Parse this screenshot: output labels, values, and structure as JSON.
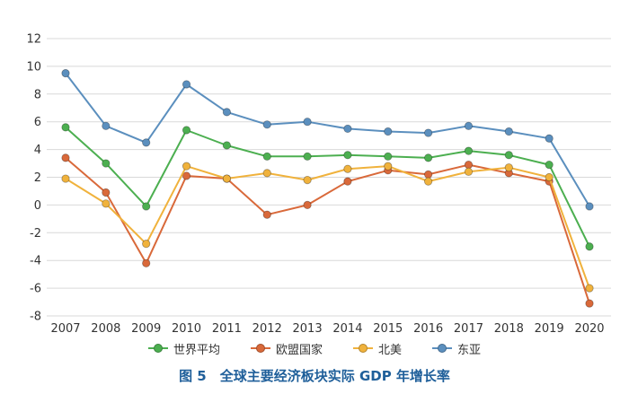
{
  "caption": "图 5　全球主要经济板块实际 GDP 年增长率",
  "chart_data": {
    "type": "line",
    "title": "图 5　全球主要经济板块实际 GDP 年增长率",
    "xlabel": "",
    "ylabel": "",
    "categories": [
      "2007",
      "2008",
      "2009",
      "2010",
      "2011",
      "2012",
      "2013",
      "2014",
      "2015",
      "2016",
      "2017",
      "2018",
      "2019",
      "2020"
    ],
    "ylim": [
      -8,
      12
    ],
    "yticks": [
      -8,
      -6,
      -4,
      -2,
      0,
      2,
      4,
      6,
      8,
      10,
      12
    ],
    "grid": "horizontal",
    "legend_position": "bottom",
    "series": [
      {
        "name": "世界平均",
        "color": "#4caf50",
        "values": [
          5.6,
          3.0,
          -0.1,
          5.4,
          4.3,
          3.5,
          3.5,
          3.6,
          3.5,
          3.4,
          3.9,
          3.6,
          2.9,
          -3.0
        ]
      },
      {
        "name": "欧盟国家",
        "color": "#d9693a",
        "values": [
          3.4,
          0.9,
          -4.2,
          2.1,
          1.9,
          -0.7,
          0.0,
          1.7,
          2.5,
          2.2,
          2.9,
          2.3,
          1.7,
          -7.1
        ]
      },
      {
        "name": "北美",
        "color": "#f0b23c",
        "values": [
          1.9,
          0.1,
          -2.8,
          2.8,
          1.9,
          2.3,
          1.8,
          2.6,
          2.8,
          1.7,
          2.4,
          2.7,
          2.0,
          -6.0
        ]
      },
      {
        "name": "东亚",
        "color": "#5b8fbe",
        "values": [
          9.5,
          5.7,
          4.5,
          8.7,
          6.7,
          5.8,
          6.0,
          5.5,
          5.3,
          5.2,
          5.7,
          5.3,
          4.8,
          -0.1
        ]
      }
    ]
  }
}
